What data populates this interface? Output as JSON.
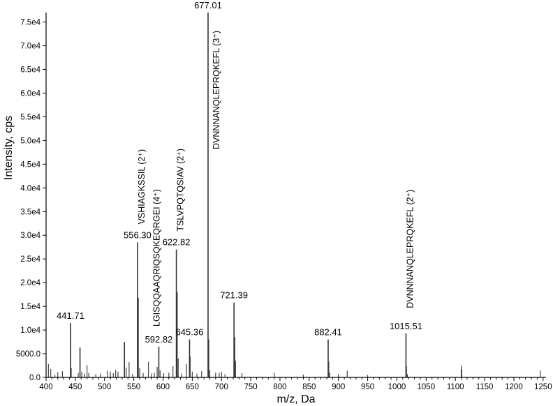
{
  "chart_data": {
    "type": "bar",
    "xlabel": "m/z, Da",
    "ylabel": "Intensity, cps",
    "xlim": [
      400,
      1255
    ],
    "ylim": [
      0,
      77000
    ],
    "x_ticks": [
      400,
      450,
      500,
      550,
      600,
      650,
      700,
      750,
      800,
      850,
      900,
      950,
      1000,
      1050,
      1100,
      1150,
      1200,
      1250
    ],
    "y_ticks": [
      {
        "v": 0,
        "label": "0.0"
      },
      {
        "v": 5000,
        "label": "5000.0"
      },
      {
        "v": 10000,
        "label": "1.0e4"
      },
      {
        "v": 15000,
        "label": "1.5e4"
      },
      {
        "v": 20000,
        "label": "2.0e4"
      },
      {
        "v": 25000,
        "label": "2.5e4"
      },
      {
        "v": 30000,
        "label": "3.0e4"
      },
      {
        "v": 35000,
        "label": "3.5e4"
      },
      {
        "v": 40000,
        "label": "4.0e4"
      },
      {
        "v": 45000,
        "label": "4.5e4"
      },
      {
        "v": 50000,
        "label": "5.0e4"
      },
      {
        "v": 55000,
        "label": "5.5e4"
      },
      {
        "v": 60000,
        "label": "6.0e4"
      },
      {
        "v": 65000,
        "label": "6.5e4"
      },
      {
        "v": 70000,
        "label": "7.0e4"
      },
      {
        "v": 75000,
        "label": "7.5e4"
      }
    ],
    "labeled_peaks": [
      {
        "x": 441.71,
        "y": 11500,
        "label": "441.71"
      },
      {
        "x": 556.3,
        "y": 28500,
        "label": "556.30"
      },
      {
        "x": 592.82,
        "y": 6500,
        "label": "592.82"
      },
      {
        "x": 622.82,
        "y": 27000,
        "label": "622.82"
      },
      {
        "x": 645.36,
        "y": 8000,
        "label": "645.36"
      },
      {
        "x": 677.01,
        "y": 77000,
        "label": "677.01"
      },
      {
        "x": 721.39,
        "y": 15800,
        "label": "721.39"
      },
      {
        "x": 882.41,
        "y": 8000,
        "label": "882.41"
      },
      {
        "x": 1015.51,
        "y": 9300,
        "label": "1015.51"
      }
    ],
    "peaks": [
      [
        404,
        2800
      ],
      [
        408,
        1800
      ],
      [
        415,
        600
      ],
      [
        420,
        1100
      ],
      [
        428,
        1300
      ],
      [
        441.71,
        11500
      ],
      [
        443,
        2000
      ],
      [
        455,
        900
      ],
      [
        458,
        6300
      ],
      [
        461,
        1200
      ],
      [
        466,
        800
      ],
      [
        470,
        2600
      ],
      [
        473,
        900
      ],
      [
        485,
        700
      ],
      [
        493,
        800
      ],
      [
        505,
        1400
      ],
      [
        510,
        1200
      ],
      [
        515,
        900
      ],
      [
        519,
        1600
      ],
      [
        523,
        1200
      ],
      [
        534,
        7500
      ],
      [
        537,
        2100
      ],
      [
        542,
        3200
      ],
      [
        548,
        700
      ],
      [
        556.3,
        28500
      ],
      [
        557.5,
        16800
      ],
      [
        560,
        2000
      ],
      [
        566,
        900
      ],
      [
        575,
        3300
      ],
      [
        580,
        800
      ],
      [
        585,
        1000
      ],
      [
        590,
        2200
      ],
      [
        592.82,
        6500
      ],
      [
        595,
        1500
      ],
      [
        601,
        900
      ],
      [
        610,
        1000
      ],
      [
        617,
        2400
      ],
      [
        622.82,
        27000
      ],
      [
        624,
        18000
      ],
      [
        626,
        4000
      ],
      [
        632,
        800
      ],
      [
        640,
        2800
      ],
      [
        645.36,
        8000
      ],
      [
        646.5,
        4400
      ],
      [
        650,
        1200
      ],
      [
        658,
        800
      ],
      [
        666,
        1300
      ],
      [
        677.01,
        77000
      ],
      [
        678,
        8000
      ],
      [
        680,
        1500
      ],
      [
        690,
        1000
      ],
      [
        696,
        900
      ],
      [
        700,
        1200
      ],
      [
        706,
        700
      ],
      [
        721.39,
        15800
      ],
      [
        722.5,
        8500
      ],
      [
        724,
        3500
      ],
      [
        735,
        900
      ],
      [
        790,
        1000
      ],
      [
        840,
        600
      ],
      [
        882.41,
        8000
      ],
      [
        883.5,
        3300
      ],
      [
        885,
        1000
      ],
      [
        900,
        700
      ],
      [
        915,
        1400
      ],
      [
        950,
        500
      ],
      [
        1015.51,
        9300
      ],
      [
        1016.5,
        2300
      ],
      [
        1018,
        700
      ],
      [
        1110,
        2500
      ],
      [
        1111,
        1700
      ],
      [
        1245,
        1500
      ]
    ],
    "annotations": [
      {
        "x": 556.3,
        "text": "VSHIAGKSSIL (2⁺)"
      },
      {
        "x": 592.82,
        "text": "LGISQQAAQRIQSQKEQRGEI (4⁺)"
      },
      {
        "x": 622.82,
        "text": "TSLVPQTQSIAV (2⁺)"
      },
      {
        "x": 677.01,
        "text": "DVNNNANQLEPRQKEFL (3⁺)"
      },
      {
        "x": 1015.51,
        "text": "DVNNNANQLEPRQKEFL (2⁺)"
      }
    ]
  }
}
